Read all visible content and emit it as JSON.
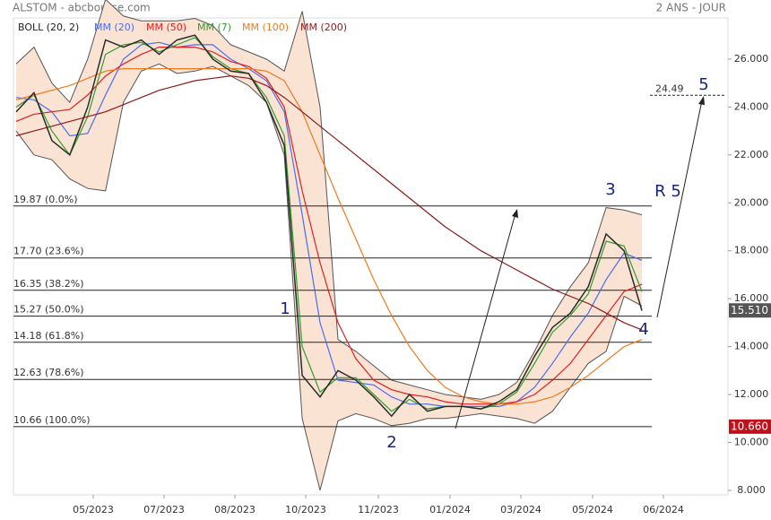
{
  "chart_data": {
    "type": "line",
    "title": "ALSTOM - abcbourse.com",
    "subtitle": "2 ANS - JOUR",
    "x_labels": [
      "05/2023",
      "07/2023",
      "08/2023",
      "10/2023",
      "11/2023",
      "01/2024",
      "03/2024",
      "05/2024",
      "06/2024"
    ],
    "ylim": [
      7.81,
      27.72
    ],
    "yticks": [
      {
        "value": 8,
        "label": "8.000"
      },
      {
        "value": 10,
        "label": "10.000"
      },
      {
        "value": 12,
        "label": "12.000"
      },
      {
        "value": 14,
        "label": "14.000"
      },
      {
        "value": 16,
        "label": "16.000"
      },
      {
        "value": 18,
        "label": "18.000"
      },
      {
        "value": 20,
        "label": "20.000"
      },
      {
        "value": 22,
        "label": "22.000"
      },
      {
        "value": 24,
        "label": "24.000"
      },
      {
        "value": 26,
        "label": "26.000"
      }
    ],
    "price": {
      "color": "#2b2b2b",
      "values": [
        23.8,
        24.6,
        22.6,
        22.0,
        24.0,
        26.8,
        26.5,
        26.8,
        26.2,
        26.8,
        27.0,
        26.0,
        25.5,
        25.4,
        24.2,
        22.4,
        12.8,
        11.9,
        13.0,
        12.6,
        11.9,
        11.1,
        12.0,
        11.3,
        11.5,
        11.5,
        11.4,
        11.7,
        12.2,
        13.6,
        14.8,
        15.4,
        16.5,
        18.7,
        18.0,
        15.5
      ]
    },
    "bollinger": {
      "name": "BOLL (20, 2)",
      "color": "#555555",
      "fill": "#fbe3d4",
      "upper": [
        25.8,
        26.5,
        25.0,
        24.2,
        26.0,
        28.5,
        27.8,
        27.6,
        27.6,
        27.6,
        27.7,
        27.4,
        26.6,
        26.3,
        26.0,
        25.5,
        28.0,
        24.0,
        14.3,
        13.8,
        13.2,
        12.6,
        12.4,
        12.2,
        12.0,
        11.9,
        11.8,
        12.0,
        12.5,
        13.8,
        15.3,
        16.5,
        17.5,
        19.8,
        19.7,
        19.5
      ],
      "lower": [
        23.0,
        22.0,
        21.8,
        21.0,
        20.6,
        20.5,
        24.2,
        25.5,
        25.8,
        25.4,
        25.5,
        25.7,
        25.3,
        24.9,
        24.2,
        22.0,
        11.0,
        8.0,
        10.9,
        11.2,
        11.0,
        10.7,
        10.8,
        11.0,
        11.0,
        11.1,
        11.2,
        11.1,
        11.0,
        10.8,
        11.3,
        12.3,
        13.3,
        13.8,
        16.1,
        15.7
      ]
    },
    "series": [
      {
        "name": "MM (20)",
        "color": "#4a6cf0",
        "values": [
          24.4,
          24.3,
          23.8,
          22.8,
          22.9,
          24.5,
          26.0,
          26.6,
          26.7,
          26.5,
          26.6,
          26.6,
          26.0,
          25.6,
          25.1,
          23.8,
          19.5,
          15.0,
          12.6,
          12.5,
          12.4,
          11.9,
          11.6,
          11.6,
          11.5,
          11.5,
          11.5,
          11.5,
          11.7,
          12.3,
          13.3,
          14.4,
          15.4,
          16.8,
          17.9,
          17.6
        ]
      },
      {
        "name": "MM (50)",
        "color": "#e02020",
        "values": [
          23.4,
          23.7,
          23.8,
          23.9,
          24.5,
          25.3,
          25.8,
          26.2,
          26.5,
          26.5,
          26.5,
          26.3,
          25.9,
          25.7,
          25.2,
          24.0,
          20.5,
          17.5,
          15.0,
          13.5,
          12.6,
          12.2,
          12.0,
          11.9,
          11.7,
          11.6,
          11.6,
          11.6,
          11.7,
          12.0,
          12.6,
          13.3,
          14.3,
          15.3,
          16.3,
          16.6
        ]
      },
      {
        "name": "MM (7)",
        "color": "#2e9e2e",
        "values": [
          24.0,
          24.5,
          23.0,
          22.0,
          23.6,
          26.2,
          26.6,
          26.7,
          26.3,
          26.6,
          26.9,
          26.1,
          25.6,
          25.4,
          24.4,
          22.8,
          14.0,
          12.1,
          12.7,
          12.7,
          12.0,
          11.3,
          11.8,
          11.4,
          11.5,
          11.5,
          11.4,
          11.6,
          12.1,
          13.3,
          14.6,
          15.3,
          16.2,
          18.4,
          18.2,
          16.3
        ]
      },
      {
        "name": "MM (100)",
        "color": "#f07a20",
        "values": [
          24.3,
          24.5,
          24.7,
          24.9,
          25.2,
          25.5,
          25.6,
          25.6,
          25.6,
          25.6,
          25.6,
          25.6,
          25.6,
          25.6,
          25.5,
          25.1,
          23.8,
          22.0,
          20.2,
          18.5,
          16.8,
          15.3,
          14.0,
          13.0,
          12.3,
          11.9,
          11.7,
          11.6,
          11.6,
          11.7,
          11.9,
          12.3,
          12.8,
          13.4,
          14.0,
          14.3
        ]
      },
      {
        "name": "MM (200)",
        "color": "#8b1a1a",
        "values": [
          22.8,
          23.0,
          23.2,
          23.4,
          23.6,
          23.8,
          24.1,
          24.4,
          24.7,
          24.9,
          25.1,
          25.2,
          25.3,
          25.2,
          24.9,
          24.4,
          23.8,
          23.2,
          22.6,
          22.0,
          21.4,
          20.8,
          20.2,
          19.6,
          19.0,
          18.5,
          18.0,
          17.6,
          17.2,
          16.8,
          16.4,
          16.1,
          15.8,
          15.4,
          15.0,
          14.7
        ]
      }
    ],
    "fib_levels": [
      {
        "value": 19.87,
        "label": "19.87  (0.0%)"
      },
      {
        "value": 17.7,
        "label": "17.70  (23.6%)"
      },
      {
        "value": 16.35,
        "label": "16.35  (38.2%)"
      },
      {
        "value": 15.27,
        "label": "15.27  (50.0%)"
      },
      {
        "value": 14.18,
        "label": "14.18  (61.8%)"
      },
      {
        "value": 12.63,
        "label": "12.63  (78.6%)"
      },
      {
        "value": 10.66,
        "label": "10.66  (100.0%)"
      }
    ],
    "price_tags": [
      {
        "value": 15.51,
        "label": "15.510",
        "color": "#555555"
      },
      {
        "value": 10.66,
        "label": "10.660",
        "color": "#c0101a"
      }
    ],
    "target": {
      "value": 24.49,
      "label": "24.49"
    },
    "wave_labels": [
      "1",
      "2",
      "3",
      "4",
      "5",
      "R 5"
    ]
  }
}
